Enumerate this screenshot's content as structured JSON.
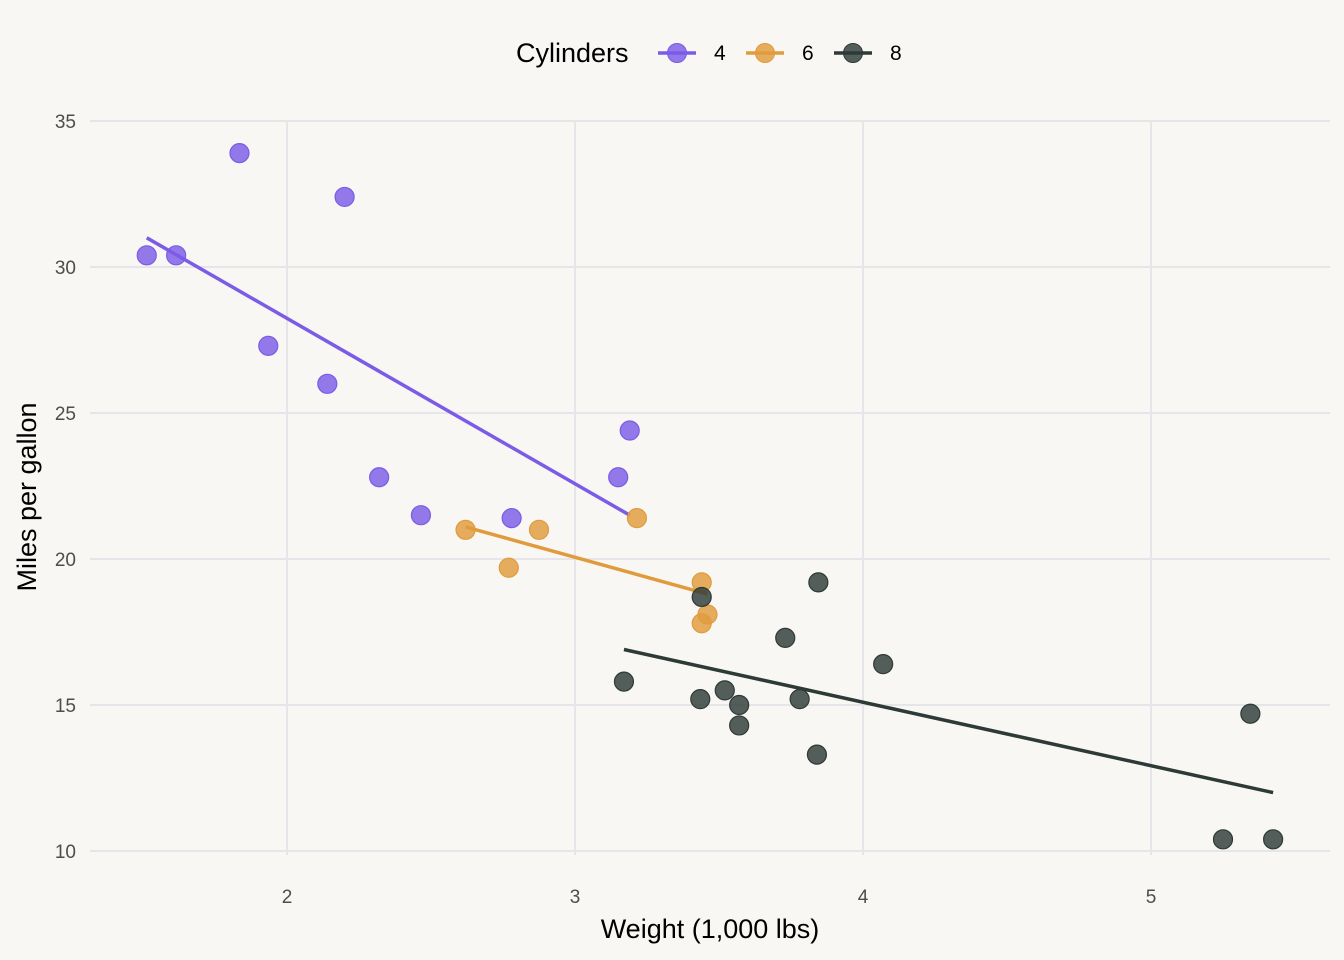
{
  "chart_data": {
    "type": "scatter",
    "title": "",
    "xlabel": "Weight (1,000 lbs)",
    "ylabel": "Miles per gallon",
    "xlim": [
      1.3,
      5.6
    ],
    "ylim": [
      9.4,
      35.3
    ],
    "xticks": [
      2,
      3,
      4,
      5
    ],
    "yticks": [
      10,
      15,
      20,
      25,
      30,
      35
    ],
    "grid": true,
    "legend": {
      "title": "Cylinders",
      "position": "top",
      "entries": [
        "4",
        "6",
        "8"
      ]
    },
    "series": [
      {
        "name": "4",
        "color": "#7b5ce6",
        "points": [
          [
            2.32,
            22.8
          ],
          [
            3.19,
            24.4
          ],
          [
            3.15,
            22.8
          ],
          [
            2.2,
            32.4
          ],
          [
            1.615,
            30.4
          ],
          [
            1.835,
            33.9
          ],
          [
            2.465,
            21.5
          ],
          [
            1.935,
            27.3
          ],
          [
            2.14,
            26.0
          ],
          [
            1.513,
            30.4
          ],
          [
            2.78,
            21.4
          ]
        ],
        "fit": [
          [
            1.513,
            31.0
          ],
          [
            3.19,
            21.5
          ]
        ]
      },
      {
        "name": "6",
        "color": "#e09b3d",
        "points": [
          [
            2.62,
            21.0
          ],
          [
            2.875,
            21.0
          ],
          [
            3.215,
            21.4
          ],
          [
            3.46,
            18.1
          ],
          [
            3.44,
            19.2
          ],
          [
            3.44,
            17.8
          ],
          [
            2.77,
            19.7
          ]
        ],
        "fit": [
          [
            2.62,
            21.1
          ],
          [
            3.46,
            18.8
          ]
        ]
      },
      {
        "name": "8",
        "color": "#2e3a37",
        "points": [
          [
            3.44,
            18.7
          ],
          [
            3.57,
            14.3
          ],
          [
            4.07,
            16.4
          ],
          [
            3.73,
            17.3
          ],
          [
            3.78,
            15.2
          ],
          [
            5.25,
            10.4
          ],
          [
            5.424,
            10.4
          ],
          [
            5.345,
            14.7
          ],
          [
            3.52,
            15.5
          ],
          [
            3.435,
            15.2
          ],
          [
            3.84,
            13.3
          ],
          [
            3.845,
            19.2
          ],
          [
            3.17,
            15.8
          ],
          [
            3.57,
            15.0
          ]
        ],
        "fit": [
          [
            3.17,
            16.9
          ],
          [
            5.424,
            12.0
          ]
        ]
      }
    ]
  }
}
